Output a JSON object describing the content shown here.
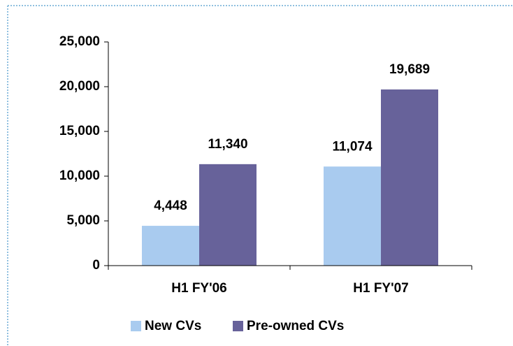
{
  "chart_data": {
    "type": "bar",
    "categories": [
      "H1 FY'06",
      "H1 FY'07"
    ],
    "series": [
      {
        "name": "New CVs",
        "color": "#a9cbef",
        "values": [
          4448,
          11074
        ],
        "value_labels": [
          "4,448",
          "11,074"
        ]
      },
      {
        "name": "Pre-owned CVs",
        "color": "#67629a",
        "values": [
          11340,
          19689
        ],
        "value_labels": [
          "11,340",
          "19,689"
        ]
      }
    ],
    "ylim": [
      0,
      25000
    ],
    "yticks": [
      {
        "value": 0,
        "label": "0"
      },
      {
        "value": 5000,
        "label": "5,000"
      },
      {
        "value": 10000,
        "label": "10,000"
      },
      {
        "value": 15000,
        "label": "15,000"
      },
      {
        "value": 20000,
        "label": "20,000"
      },
      {
        "value": 25000,
        "label": "25,000"
      }
    ],
    "legend": "bottom"
  }
}
